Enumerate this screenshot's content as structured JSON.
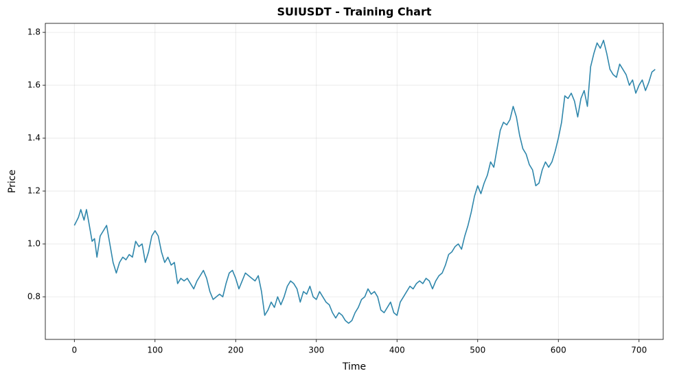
{
  "chart_data": {
    "type": "line",
    "title": "SUIUSDT - Training Chart",
    "x_label": "Time",
    "y_label": "Price",
    "x": [
      0,
      5,
      8,
      12,
      15,
      18,
      22,
      25,
      28,
      32,
      36,
      40,
      44,
      48,
      52,
      56,
      60,
      64,
      68,
      72,
      76,
      80,
      84,
      88,
      92,
      96,
      100,
      104,
      108,
      112,
      116,
      120,
      124,
      128,
      132,
      136,
      140,
      144,
      148,
      152,
      156,
      160,
      164,
      168,
      172,
      176,
      180,
      184,
      188,
      192,
      196,
      200,
      204,
      208,
      212,
      216,
      220,
      224,
      228,
      232,
      236,
      240,
      244,
      248,
      252,
      256,
      260,
      264,
      268,
      272,
      276,
      280,
      284,
      288,
      292,
      296,
      300,
      304,
      308,
      312,
      316,
      320,
      324,
      328,
      332,
      336,
      340,
      344,
      348,
      352,
      356,
      360,
      364,
      368,
      372,
      376,
      380,
      384,
      388,
      392,
      396,
      400,
      404,
      408,
      412,
      416,
      420,
      424,
      428,
      432,
      436,
      440,
      444,
      448,
      452,
      456,
      460,
      464,
      468,
      472,
      476,
      480,
      484,
      488,
      492,
      496,
      500,
      504,
      508,
      512,
      516,
      520,
      524,
      528,
      532,
      536,
      540,
      544,
      548,
      552,
      556,
      560,
      564,
      568,
      572,
      576,
      580,
      584,
      588,
      592,
      596,
      600,
      604,
      608,
      612,
      616,
      620,
      624,
      628,
      632,
      636,
      640,
      644,
      648,
      652,
      656,
      660,
      664,
      668,
      672,
      676,
      680,
      684,
      688,
      692,
      696,
      700,
      704,
      708,
      712,
      716,
      720
    ],
    "series": [
      {
        "name": "Price",
        "color": "#2e86ab",
        "values": [
          1.07,
          1.1,
          1.13,
          1.09,
          1.13,
          1.08,
          1.01,
          1.02,
          0.95,
          1.03,
          1.05,
          1.07,
          1.0,
          0.93,
          0.89,
          0.93,
          0.95,
          0.94,
          0.96,
          0.95,
          1.01,
          0.99,
          1.0,
          0.93,
          0.97,
          1.03,
          1.05,
          1.03,
          0.97,
          0.93,
          0.95,
          0.92,
          0.93,
          0.85,
          0.87,
          0.86,
          0.87,
          0.85,
          0.83,
          0.86,
          0.88,
          0.9,
          0.87,
          0.82,
          0.79,
          0.8,
          0.81,
          0.8,
          0.85,
          0.89,
          0.9,
          0.87,
          0.83,
          0.86,
          0.89,
          0.88,
          0.87,
          0.86,
          0.88,
          0.82,
          0.73,
          0.75,
          0.78,
          0.76,
          0.8,
          0.77,
          0.8,
          0.84,
          0.86,
          0.85,
          0.83,
          0.78,
          0.82,
          0.81,
          0.84,
          0.8,
          0.79,
          0.82,
          0.8,
          0.78,
          0.77,
          0.74,
          0.72,
          0.74,
          0.73,
          0.71,
          0.7,
          0.71,
          0.74,
          0.76,
          0.79,
          0.8,
          0.83,
          0.81,
          0.82,
          0.8,
          0.75,
          0.74,
          0.76,
          0.78,
          0.74,
          0.73,
          0.78,
          0.8,
          0.82,
          0.84,
          0.83,
          0.85,
          0.86,
          0.85,
          0.87,
          0.86,
          0.83,
          0.86,
          0.88,
          0.89,
          0.92,
          0.96,
          0.97,
          0.99,
          1.0,
          0.98,
          1.03,
          1.07,
          1.12,
          1.18,
          1.22,
          1.19,
          1.23,
          1.26,
          1.31,
          1.29,
          1.36,
          1.43,
          1.46,
          1.45,
          1.47,
          1.52,
          1.48,
          1.41,
          1.36,
          1.34,
          1.3,
          1.28,
          1.22,
          1.23,
          1.28,
          1.31,
          1.29,
          1.31,
          1.35,
          1.4,
          1.46,
          1.56,
          1.55,
          1.57,
          1.54,
          1.48,
          1.55,
          1.58,
          1.52,
          1.67,
          1.72,
          1.76,
          1.74,
          1.77,
          1.72,
          1.66,
          1.64,
          1.63,
          1.68,
          1.66,
          1.64,
          1.6,
          1.62,
          1.57,
          1.6,
          1.62,
          1.58,
          1.61,
          1.65,
          1.66
        ]
      }
    ],
    "xlim": [
      -36,
      730
    ],
    "xticks": [
      0,
      100,
      200,
      300,
      400,
      500,
      600,
      700
    ],
    "ylim": [
      0.639,
      1.834
    ],
    "yticks": [
      0.8,
      {
        "value": 1,
        "label": "1.0"
      },
      1.2,
      1.4,
      1.6,
      1.8
    ],
    "grid": true
  }
}
